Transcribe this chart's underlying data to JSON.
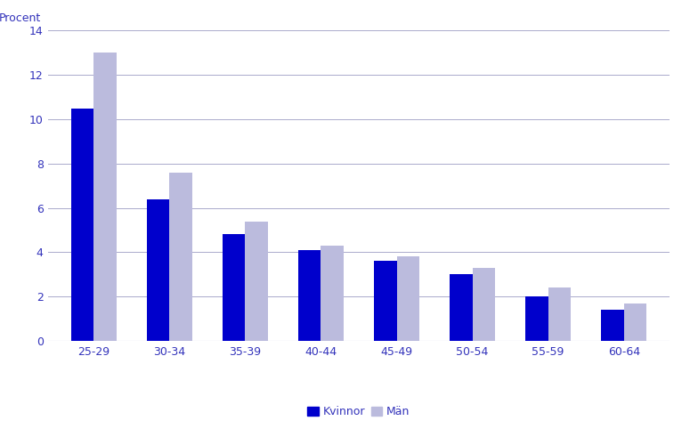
{
  "categories": [
    "25-29",
    "30-34",
    "35-39",
    "40-44",
    "45-49",
    "50-54",
    "55-59",
    "60-64"
  ],
  "kvinnor": [
    10.5,
    6.4,
    4.8,
    4.1,
    3.6,
    3.0,
    2.0,
    1.4
  ],
  "man": [
    13.0,
    7.6,
    5.4,
    4.3,
    3.8,
    3.3,
    2.4,
    1.7
  ],
  "color_kvinnor": "#0000CC",
  "color_man": "#BBBBDD",
  "ylabel": "Procent",
  "ylim": [
    0,
    14
  ],
  "yticks": [
    0,
    2,
    4,
    6,
    8,
    10,
    12,
    14
  ],
  "legend_kvinnor": "Kvinnor",
  "legend_man": "Män",
  "background_color": "#ffffff",
  "grid_color": "#aaaacc",
  "text_color": "#3333bb",
  "bar_width": 0.3
}
